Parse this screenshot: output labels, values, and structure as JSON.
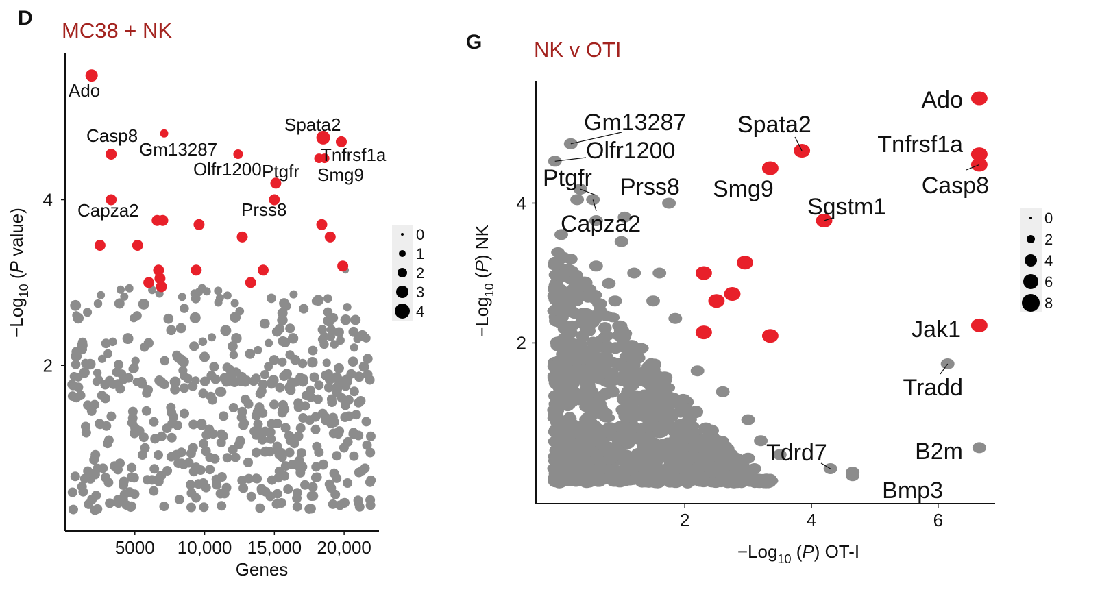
{
  "colors": {
    "highlight": "#e8202a",
    "background_points": "#8c8c8c",
    "title": "#a3231f"
  },
  "panels": [
    {
      "letter": "D",
      "title": "MC38 + NK"
    },
    {
      "letter": "G",
      "title": "NK v OTI"
    }
  ],
  "chart_data": [
    {
      "type": "scatter",
      "title": "MC38 + NK",
      "xlabel": "Genes",
      "ylabel": "−Log10 (P value)",
      "ylabel_parts": {
        "pre": "−Log",
        "sub": "10",
        "mid": " (",
        "ital": "P",
        "post": " value)"
      },
      "xticks": [
        5000,
        10000,
        15000,
        20000
      ],
      "xtick_labels": [
        "5000",
        "10,000",
        "15,000",
        "20,000"
      ],
      "yticks": [
        2,
        4
      ],
      "xlim": [
        0,
        22500
      ],
      "ylim": [
        0,
        5.75
      ],
      "grid": false,
      "legend": {
        "placement": "right",
        "labels": [
          "0",
          "1",
          "2",
          "3",
          "4"
        ]
      },
      "highlight_points": [
        {
          "gene": "Ado",
          "x": 1900,
          "y": 5.5
        },
        {
          "gene": "Casp8",
          "x": 3300,
          "y": 4.55
        },
        {
          "gene": "Gm13287",
          "x": 7100,
          "y": 4.8
        },
        {
          "gene": "Olfr1200",
          "x": 12400,
          "y": 4.55
        },
        {
          "gene": "Ptgfr",
          "x": 15100,
          "y": 4.2
        },
        {
          "gene": "Spata2",
          "x": 18500,
          "y": 4.75
        },
        {
          "gene": "Tnfrsf1a",
          "x": 18200,
          "y": 4.5
        },
        {
          "gene": "Smg9",
          "x": 18600,
          "y": 4.5
        },
        {
          "gene": "Capza2",
          "x": 3300,
          "y": 4.0
        },
        {
          "gene": "Prss8",
          "x": 15000,
          "y": 4.0
        },
        {
          "gene": "",
          "x": 19800,
          "y": 4.7
        },
        {
          "gene": "",
          "x": 6600,
          "y": 3.75
        },
        {
          "gene": "",
          "x": 7000,
          "y": 3.75
        },
        {
          "gene": "",
          "x": 9600,
          "y": 3.7
        },
        {
          "gene": "",
          "x": 12700,
          "y": 3.55
        },
        {
          "gene": "",
          "x": 18400,
          "y": 3.7
        },
        {
          "gene": "",
          "x": 19000,
          "y": 3.55
        },
        {
          "gene": "",
          "x": 2500,
          "y": 3.45
        },
        {
          "gene": "",
          "x": 5200,
          "y": 3.45
        },
        {
          "gene": "",
          "x": 6700,
          "y": 3.15
        },
        {
          "gene": "",
          "x": 6800,
          "y": 3.05
        },
        {
          "gene": "",
          "x": 9400,
          "y": 3.15
        },
        {
          "gene": "",
          "x": 14200,
          "y": 3.15
        },
        {
          "gene": "",
          "x": 6000,
          "y": 3.0
        },
        {
          "gene": "",
          "x": 6900,
          "y": 2.95
        },
        {
          "gene": "",
          "x": 13300,
          "y": 3.0
        },
        {
          "gene": "",
          "x": 19900,
          "y": 3.2
        }
      ]
    },
    {
      "type": "scatter",
      "title": "NK v OTI",
      "xlabel": "−Log10 (P) OT-I",
      "ylabel": "−Log10 (P) NK",
      "xlabel_parts": {
        "pre": "−Log",
        "sub": "10",
        "mid": " (",
        "ital": "P",
        "post": ") OT-I"
      },
      "ylabel_parts": {
        "pre": "−Log",
        "sub": "10",
        "mid": " (",
        "ital": "P",
        "post": ") NK"
      },
      "xticks": [
        2,
        4,
        6
      ],
      "yticks": [
        2,
        4
      ],
      "xlim": [
        -0.35,
        6.9
      ],
      "ylim": [
        -0.3,
        5.75
      ],
      "grid": false,
      "legend": {
        "placement": "right",
        "labels": [
          "0",
          "2",
          "4",
          "6",
          "8"
        ]
      },
      "highlight_points": [
        {
          "gene": "Ado",
          "x": 6.65,
          "y": 5.5
        },
        {
          "gene": "Tnfrsf1a",
          "x": 6.65,
          "y": 4.7
        },
        {
          "gene": "Casp8",
          "x": 6.65,
          "y": 4.55
        },
        {
          "gene": "Spata2",
          "x": 3.85,
          "y": 4.75
        },
        {
          "gene": "Smg9",
          "x": 3.35,
          "y": 4.5
        },
        {
          "gene": "Sqstm1",
          "x": 4.2,
          "y": 3.75
        },
        {
          "gene": "Jak1",
          "x": 6.65,
          "y": 2.25
        },
        {
          "gene": "",
          "x": 2.3,
          "y": 3.0
        },
        {
          "gene": "",
          "x": 2.95,
          "y": 3.15
        },
        {
          "gene": "",
          "x": 2.5,
          "y": 2.6
        },
        {
          "gene": "",
          "x": 2.75,
          "y": 2.7
        },
        {
          "gene": "",
          "x": 2.3,
          "y": 2.15
        },
        {
          "gene": "",
          "x": 3.35,
          "y": 2.1
        }
      ],
      "labeled_gray_points": [
        {
          "gene": "Gm13287",
          "x": 0.2,
          "y": 4.85
        },
        {
          "gene": "Olfr1200",
          "x": -0.05,
          "y": 4.6
        },
        {
          "gene": "Ptgfr",
          "x": 0.35,
          "y": 4.2
        },
        {
          "gene": "Prss8",
          "x": 1.75,
          "y": 4.0
        },
        {
          "gene": "Capza2",
          "x": 0.55,
          "y": 4.05
        },
        {
          "gene": "Tradd",
          "x": 6.15,
          "y": 1.7
        },
        {
          "gene": "B2m",
          "x": 6.65,
          "y": 0.5
        },
        {
          "gene": "Tdrd7",
          "x": 4.3,
          "y": 0.2
        },
        {
          "gene": "Bmp3",
          "x": 4.65,
          "y": 0.15
        }
      ]
    }
  ]
}
